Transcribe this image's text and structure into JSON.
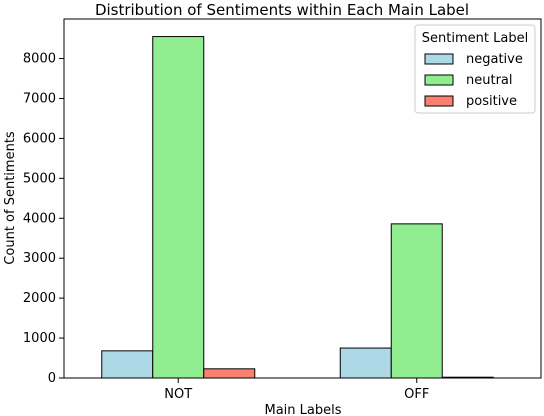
{
  "chart_data": {
    "type": "bar",
    "title": "Distribution of Sentiments within Each Main Label",
    "xlabel": "Main Labels",
    "ylabel": "Count of Sentiments",
    "categories": [
      "NOT",
      "OFF"
    ],
    "series": [
      {
        "name": "negative",
        "values": [
          680,
          750
        ],
        "color": "#add8e6"
      },
      {
        "name": "neutral",
        "values": [
          8550,
          3860
        ],
        "color": "#90ee90"
      },
      {
        "name": "positive",
        "values": [
          230,
          20
        ],
        "color": "#fa8072"
      }
    ],
    "ylim": [
      0,
      8990
    ],
    "yticks": [
      0,
      1000,
      2000,
      3000,
      4000,
      5000,
      6000,
      7000,
      8000
    ],
    "legend": {
      "title": "Sentiment Label",
      "position": "top-right"
    },
    "grid": false
  }
}
